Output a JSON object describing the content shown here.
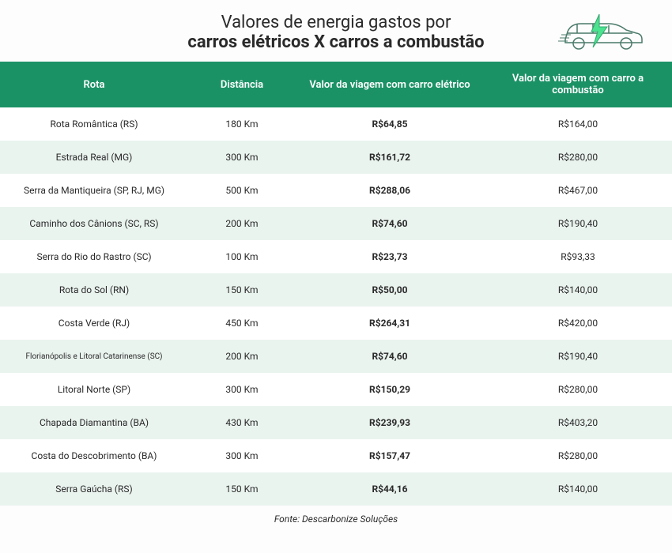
{
  "title": {
    "line1": "Valores de energia gastos por",
    "line2": "carros elétricos X carros a combustão",
    "fontsize": 22,
    "color": "#2a2a2a"
  },
  "icon": {
    "bolt_color": "#4be38f",
    "car_color": "#4a7a6a"
  },
  "table": {
    "type": "table",
    "header_bg": "#1b9266",
    "header_text_color": "#ffffff",
    "header_fontsize": 13,
    "row_odd_bg": "#ffffff",
    "row_even_bg": "#eaf4ef",
    "cell_fontsize": 12,
    "cell_color": "#2a2a2a",
    "ev_column_fontweight": 700,
    "column_widths_pct": [
      28,
      16,
      28,
      28
    ],
    "columns": [
      "Rota",
      "Distância",
      "Valor da viagem com carro elétrico",
      "Valor da viagem com carro a combustão"
    ],
    "rows": [
      {
        "route": "Rota Romântica (RS)",
        "distance": "180 Km",
        "ev": "R$64,85",
        "comb": "R$164,00"
      },
      {
        "route": "Estrada Real (MG)",
        "distance": "300 Km",
        "ev": "R$161,72",
        "comb": "R$280,00"
      },
      {
        "route": "Serra da Mantiqueira (SP, RJ, MG)",
        "distance": "500 Km",
        "ev": "R$288,06",
        "comb": "R$467,00"
      },
      {
        "route": "Caminho dos Cânions (SC, RS)",
        "distance": "200 Km",
        "ev": "R$74,60",
        "comb": "R$190,40"
      },
      {
        "route": "Serra do Rio do Rastro (SC)",
        "distance": "100 Km",
        "ev": "R$23,73",
        "comb": "R$93,33"
      },
      {
        "route": "Rota do Sol (RN)",
        "distance": "150 Km",
        "ev": "R$50,00",
        "comb": "R$140,00"
      },
      {
        "route": "Costa Verde (RJ)",
        "distance": "450 Km",
        "ev": "R$264,31",
        "comb": "R$420,00"
      },
      {
        "route": "Florianópolis e Litoral Catarinense (SC)",
        "distance": "200 Km",
        "ev": "R$74,60",
        "comb": "R$190,40",
        "small": true
      },
      {
        "route": "Litoral Norte (SP)",
        "distance": "300 Km",
        "ev": "R$150,29",
        "comb": "R$280,00"
      },
      {
        "route": "Chapada Diamantina (BA)",
        "distance": "430 Km",
        "ev": "R$239,93",
        "comb": "R$403,20"
      },
      {
        "route": "Costa do Descobrimento (BA)",
        "distance": "300 Km",
        "ev": "R$157,47",
        "comb": "R$280,00"
      },
      {
        "route": "Serra Gaúcha (RS)",
        "distance": "150 Km",
        "ev": "R$44,16",
        "comb": "R$140,00"
      }
    ]
  },
  "footer": {
    "text": "Fonte: Descarbonize Soluções",
    "fontsize": 12,
    "color": "#2a2a2a"
  }
}
